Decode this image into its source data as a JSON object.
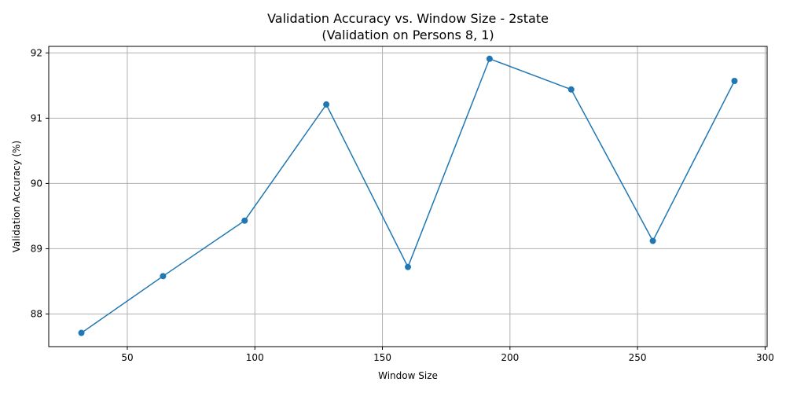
{
  "chart_data": {
    "type": "line",
    "title": "Validation Accuracy vs. Window Size - 2state",
    "subtitle": "(Validation on Persons 8, 1)",
    "xlabel": "Window Size",
    "ylabel": "Validation Accuracy (%)",
    "x": [
      32,
      64,
      96,
      128,
      160,
      192,
      224,
      256,
      288
    ],
    "series": [
      {
        "values": [
          87.71,
          88.58,
          89.43,
          91.21,
          88.72,
          91.91,
          91.44,
          89.12,
          91.57
        ],
        "color": "#1f77b4",
        "marker": "circle"
      }
    ],
    "xlim": [
      19.2,
      300.8
    ],
    "ylim": [
      87.5,
      92.1
    ],
    "xticks": [
      50,
      100,
      150,
      200,
      250,
      300
    ],
    "yticks": [
      88,
      89,
      90,
      91,
      92
    ],
    "xtick_labels": [
      "50",
      "100",
      "150",
      "200",
      "250",
      "300"
    ],
    "ytick_labels": [
      "88",
      "89",
      "90",
      "91",
      "92"
    ],
    "grid": true,
    "legend": "none"
  }
}
